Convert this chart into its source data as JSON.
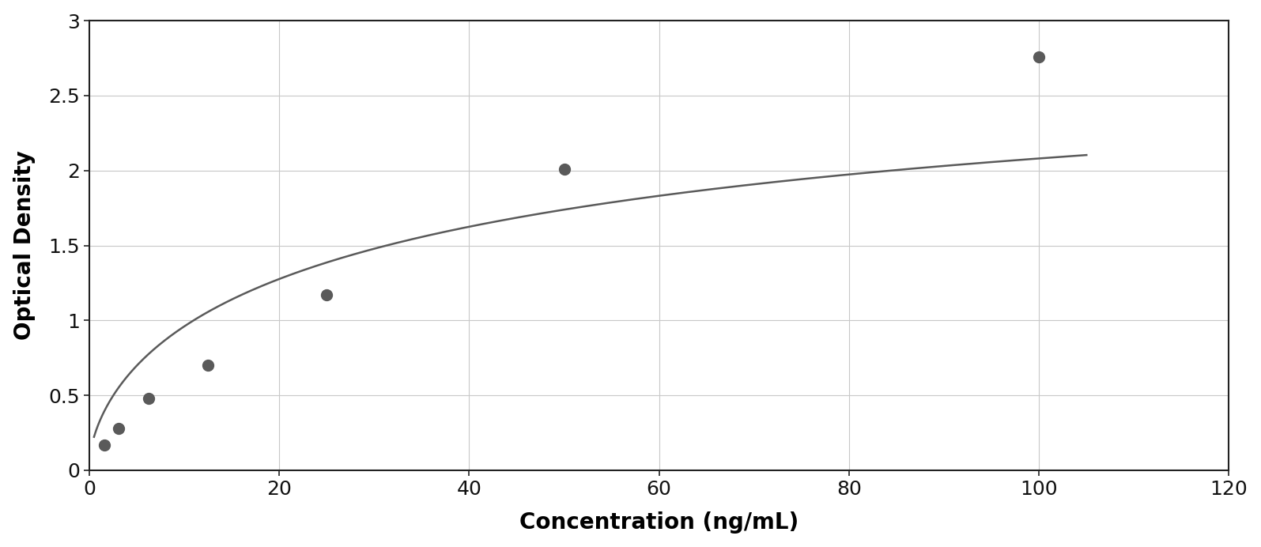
{
  "x_data": [
    1.5625,
    3.125,
    6.25,
    12.5,
    25,
    50,
    100
  ],
  "y_data": [
    0.17,
    0.28,
    0.48,
    0.7,
    1.17,
    2.01,
    2.76
  ],
  "xlabel": "Concentration (ng/mL)",
  "ylabel": "Optical Density",
  "xlim": [
    0,
    120
  ],
  "ylim": [
    0,
    3
  ],
  "xticks": [
    0,
    20,
    40,
    60,
    80,
    100,
    120
  ],
  "yticks": [
    0,
    0.5,
    1.0,
    1.5,
    2.0,
    2.5,
    3.0
  ],
  "point_color": "#5a5a5a",
  "line_color": "#5a5a5a",
  "plot_bg_color": "#ffffff",
  "fig_bg_color": "#ffffff",
  "grid_color": "#c8c8c8",
  "marker_size": 100,
  "line_width": 1.8,
  "xlabel_fontsize": 20,
  "ylabel_fontsize": 20,
  "tick_fontsize": 18,
  "curve_x_end": 105
}
